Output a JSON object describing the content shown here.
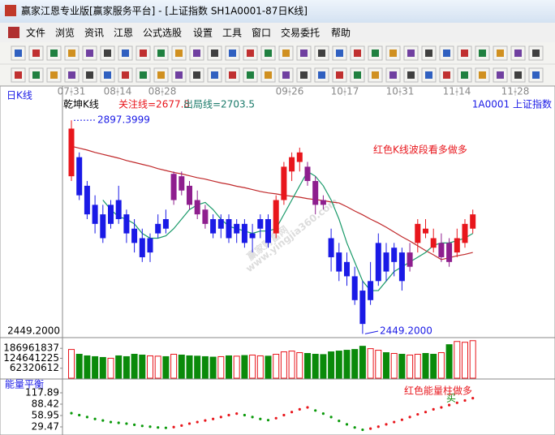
{
  "window": {
    "title": "赢家江恩专业版[赢家服务平台] - [上证指数  SH1A0001-87日K线]"
  },
  "menu": [
    "文件",
    "浏览",
    "资讯",
    "江恩",
    "公式选股",
    "设置",
    "工具",
    "窗口",
    "交易委托",
    "帮助"
  ],
  "watermark": [
    "赢家财富网",
    "www.yingjia360.com"
  ],
  "chart_data": [
    {
      "type": "candlestick",
      "title": "日K线",
      "indicator": "乾坤K线",
      "focus_line": "关注线=2677.8",
      "exit_line": "出局线=2703.5",
      "symbol": "1A0001  上证指数",
      "dates": [
        "07-31",
        "08-14",
        "08-28",
        "09-26",
        "10-17",
        "10-31",
        "11-14",
        "11-28"
      ],
      "open": [
        2780,
        2820,
        2760,
        2720,
        2700,
        2680,
        2730,
        2700,
        2670,
        2650,
        2620,
        2660,
        2690,
        2730,
        2780,
        2760,
        2730,
        2710,
        2690,
        2670,
        2690,
        2660,
        2680,
        2650,
        2670,
        2690,
        2660,
        2730,
        2790,
        2810,
        2800,
        2770,
        2730,
        2650,
        2620,
        2600,
        2570,
        2540,
        2520,
        2560,
        2620,
        2600,
        2620,
        2590,
        2640,
        2670,
        2650,
        2610,
        2640,
        2620,
        2640,
        2670
      ],
      "high": [
        2897.3999,
        2830,
        2770,
        2740,
        2720,
        2730,
        2760,
        2710,
        2690,
        2670,
        2660,
        2700,
        2710,
        2790,
        2790,
        2770,
        2750,
        2720,
        2700,
        2700,
        2700,
        2690,
        2690,
        2680,
        2700,
        2700,
        2740,
        2810,
        2830,
        2840,
        2810,
        2780,
        2740,
        2670,
        2640,
        2620,
        2590,
        2560,
        2600,
        2660,
        2640,
        2640,
        2630,
        2640,
        2690,
        2690,
        2670,
        2660,
        2650,
        2670,
        2690,
        2710
      ],
      "low": [
        2770,
        2730,
        2690,
        2660,
        2640,
        2670,
        2680,
        2640,
        2620,
        2600,
        2600,
        2650,
        2660,
        2720,
        2740,
        2710,
        2690,
        2670,
        2650,
        2650,
        2640,
        2640,
        2630,
        2620,
        2650,
        2630,
        2650,
        2720,
        2770,
        2790,
        2760,
        2700,
        2710,
        2580,
        2560,
        2550,
        2510,
        2449.2,
        2510,
        2550,
        2560,
        2570,
        2540,
        2580,
        2620,
        2650,
        2620,
        2600,
        2590,
        2610,
        2630,
        2660
      ],
      "close": [
        2880,
        2740,
        2700,
        2680,
        2650,
        2720,
        2690,
        2660,
        2640,
        2610,
        2650,
        2680,
        2670,
        2785,
        2750,
        2720,
        2700,
        2680,
        2660,
        2690,
        2650,
        2680,
        2640,
        2660,
        2690,
        2640,
        2730,
        2800,
        2820,
        2830,
        2770,
        2720,
        2720,
        2610,
        2580,
        2570,
        2520,
        2470,
        2560,
        2640,
        2580,
        2630,
        2560,
        2620,
        2680,
        2660,
        2630,
        2640,
        2600,
        2650,
        2680,
        2700
      ],
      "wave": "rbbbbbbbbbbbbpppppbbbbbbbbrrrrpppbbbbbbbbbbprrrpprrr",
      "wave_colors": {
        "r": "#e8161c",
        "b": "#1a1ae6",
        "p": "#8e1e8e"
      },
      "ma": [
        {
          "color": "#c0282a",
          "values": [
            2843,
            2839,
            2835,
            2830,
            2826,
            2822,
            2818,
            2813,
            2809,
            2805,
            2801,
            2796,
            2792,
            2788,
            2785,
            2781,
            2777,
            2774,
            2770,
            2766,
            2763,
            2759,
            2756,
            2752,
            2748,
            2745,
            2743,
            2740,
            2738,
            2736,
            2733,
            2731,
            2729,
            2726,
            2724,
            2716,
            2707,
            2699,
            2690,
            2682,
            2673,
            2663,
            2653,
            2644,
            2634,
            2624,
            2615,
            2605,
            2609,
            2613,
            2616,
            2620
          ]
        },
        {
          "color": "#1a9a6a",
          "values": [
            null,
            null,
            null,
            null,
            2730,
            2710,
            2695,
            2690,
            2680,
            2660,
            2650,
            2650,
            2655,
            2670,
            2690,
            2710,
            2720,
            2725,
            2710,
            2690,
            2675,
            2670,
            2665,
            2660,
            2665,
            2665,
            2670,
            2700,
            2730,
            2760,
            2790,
            2780,
            2760,
            2730,
            2690,
            2640,
            2600,
            2560,
            2540,
            2540,
            2560,
            2580,
            2590,
            2600,
            2610,
            2620,
            2635,
            2640,
            2640,
            2645,
            2650,
            2660
          ]
        }
      ],
      "ylim": [
        2443,
        2937
      ],
      "low_label": "2449.2000",
      "annotations": [
        "2897.3999",
        "2449.2000",
        "红色K线波段看多做多"
      ]
    },
    {
      "type": "bar",
      "values": [
        180000000,
        150000000,
        140000000,
        135000000,
        130000000,
        125000000,
        140000000,
        135000000,
        150000000,
        145000000,
        140000000,
        138000000,
        135000000,
        150000000,
        145000000,
        140000000,
        138000000,
        135000000,
        132000000,
        135000000,
        140000000,
        138000000,
        142000000,
        145000000,
        140000000,
        138000000,
        150000000,
        165000000,
        170000000,
        160000000,
        155000000,
        150000000,
        148000000,
        165000000,
        170000000,
        175000000,
        180000000,
        200000000,
        185000000,
        175000000,
        160000000,
        155000000,
        150000000,
        145000000,
        150000000,
        155000000,
        150000000,
        160000000,
        210000000,
        230000000,
        225000000,
        235000000
      ],
      "ylim": [
        0,
        244000000
      ],
      "yticks": [
        62320612,
        124641225,
        186961837
      ],
      "up_color": "#e8161c",
      "down_color": "#0a8a0a",
      "marker": "买"
    },
    {
      "type": "dots",
      "title": "能量平衡",
      "values": [
        65,
        60,
        55,
        50,
        46,
        42,
        40,
        38,
        35,
        32,
        30,
        28,
        27,
        29,
        33,
        38,
        42,
        46,
        50,
        55,
        60,
        64,
        60,
        55,
        50,
        47,
        52,
        60,
        68,
        75,
        80,
        72,
        64,
        55,
        45,
        36,
        28,
        22,
        25,
        30,
        36,
        42,
        48,
        55,
        62,
        68,
        75,
        80,
        86,
        92,
        98,
        104
      ],
      "ylim": [
        8.42,
        147.37
      ],
      "yticks": [
        29.47,
        58.95,
        88.42,
        117.89
      ],
      "up_color": "#e8161c",
      "down_color": "#0a9a0a",
      "annotation": "红色能量柱做多"
    }
  ]
}
